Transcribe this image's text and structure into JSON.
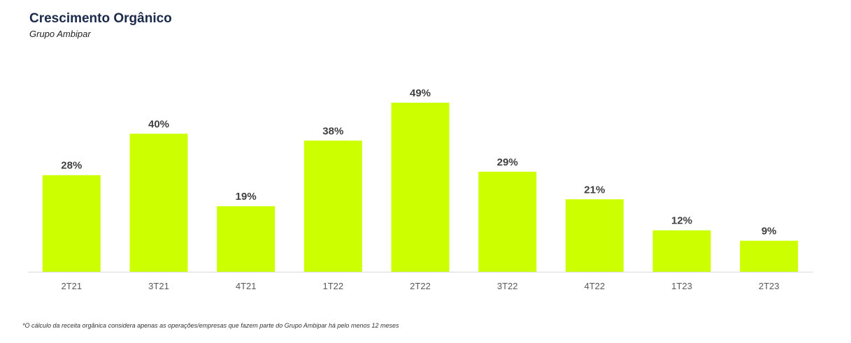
{
  "header": {
    "title": "Crescimento Orgânico",
    "subtitle": "Grupo Ambipar"
  },
  "colors": {
    "bar": "#ccff00",
    "value_label": "#404040",
    "axis_label": "#595959",
    "axis_line": "#d9d9d9"
  },
  "chart_data": {
    "type": "bar",
    "title": "Crescimento Orgânico",
    "subtitle": "Grupo Ambipar",
    "categories": [
      "2T21",
      "3T21",
      "4T21",
      "1T22",
      "2T22",
      "3T22",
      "4T22",
      "1T23",
      "2T23"
    ],
    "values": [
      28,
      40,
      19,
      38,
      49,
      29,
      21,
      12,
      9
    ],
    "value_labels": [
      "28%",
      "40%",
      "19%",
      "38%",
      "49%",
      "29%",
      "21%",
      "12%",
      "9%"
    ],
    "unit": "%",
    "xlabel": "",
    "ylabel": "",
    "ylim": [
      0,
      49
    ],
    "grid": false,
    "legend": "none"
  },
  "footnote": "*O cálculo da receita orgânica considera apenas as operações/empresas que fazem parte do Grupo Ambipar há pelo menos 12 meses"
}
